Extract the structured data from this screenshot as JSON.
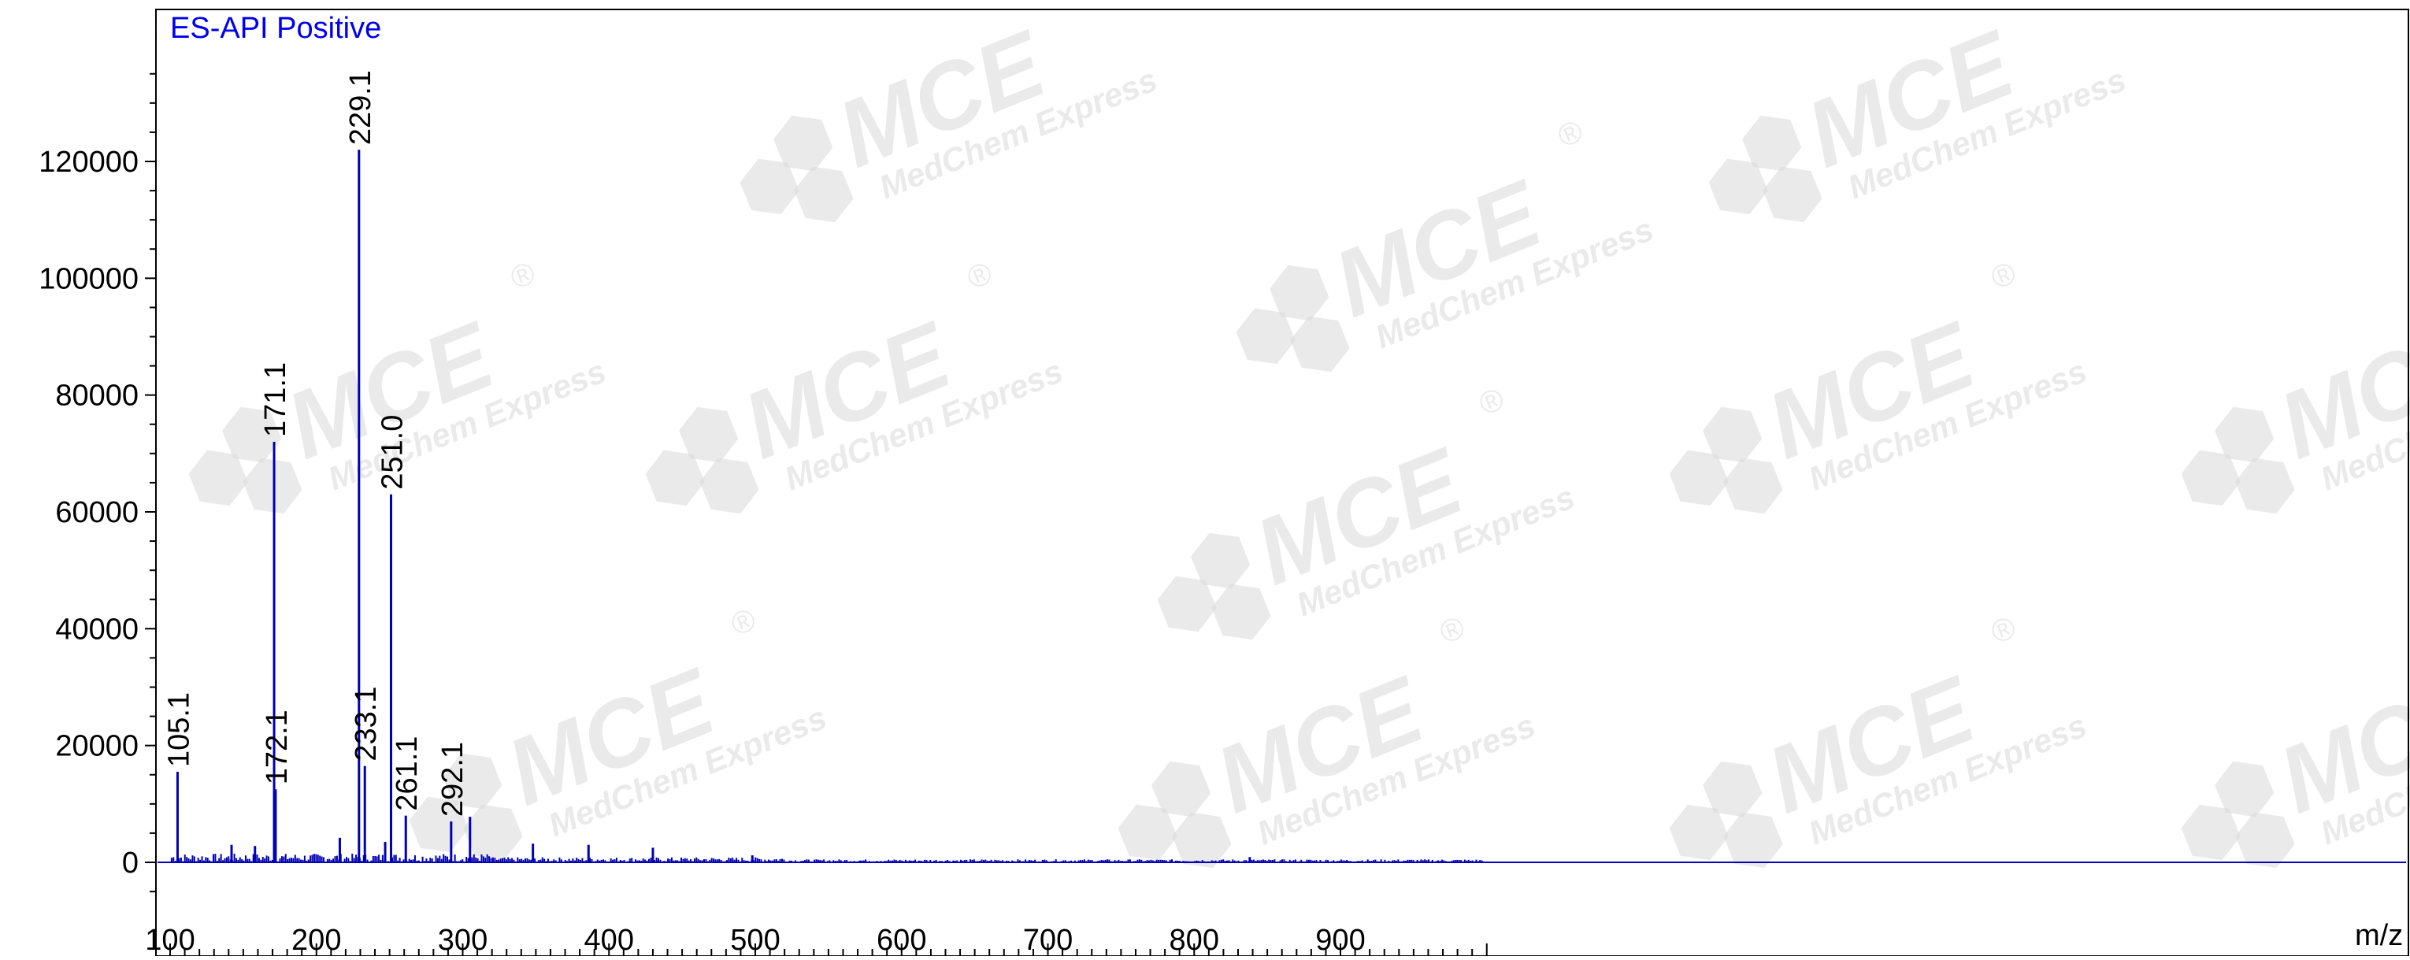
{
  "chart_data": {
    "type": "bar",
    "title": "ES-API Positive",
    "xlabel": "m/z",
    "ylabel": "",
    "xlim": [
      98,
      1000
    ],
    "ylim": [
      -6500,
      140000
    ],
    "x_ticks": [
      100,
      200,
      300,
      400,
      500,
      600,
      700,
      800,
      900
    ],
    "y_ticks": [
      0,
      20000,
      40000,
      60000,
      80000,
      100000,
      120000
    ],
    "x_tick_labels": [
      "100",
      "200",
      "300",
      "400",
      "500",
      "600",
      "700",
      "800",
      "900"
    ],
    "y_tick_labels": [
      "0",
      "20000",
      "40000",
      "60000",
      "80000",
      "100000",
      "120000"
    ],
    "grid": false,
    "series": [
      {
        "x": [
          105.1,
          171.1,
          172.1,
          229.1,
          233.1,
          251.0,
          261.1,
          292.1,
          142,
          158,
          216,
          247,
          305,
          348,
          386,
          430,
          498,
          838
        ],
        "values": [
          15500,
          72000,
          12500,
          122000,
          16500,
          63000,
          8000,
          7000,
          3000,
          2800,
          4200,
          3500,
          7800,
          3200,
          3000,
          2500,
          1200,
          900
        ]
      }
    ],
    "peak_labels": [
      "105.1",
      "171.1",
      "172.1",
      "229.1",
      "233.1",
      "251.0",
      "261.1",
      "292.1"
    ],
    "colors": {
      "spectrum": "#0000b4",
      "title": "#0000ee",
      "axis": "#000000",
      "watermark": "#d9d9d9"
    }
  },
  "watermark": {
    "brand": "MCE",
    "company": "MedChem Express",
    "registered": "®"
  }
}
